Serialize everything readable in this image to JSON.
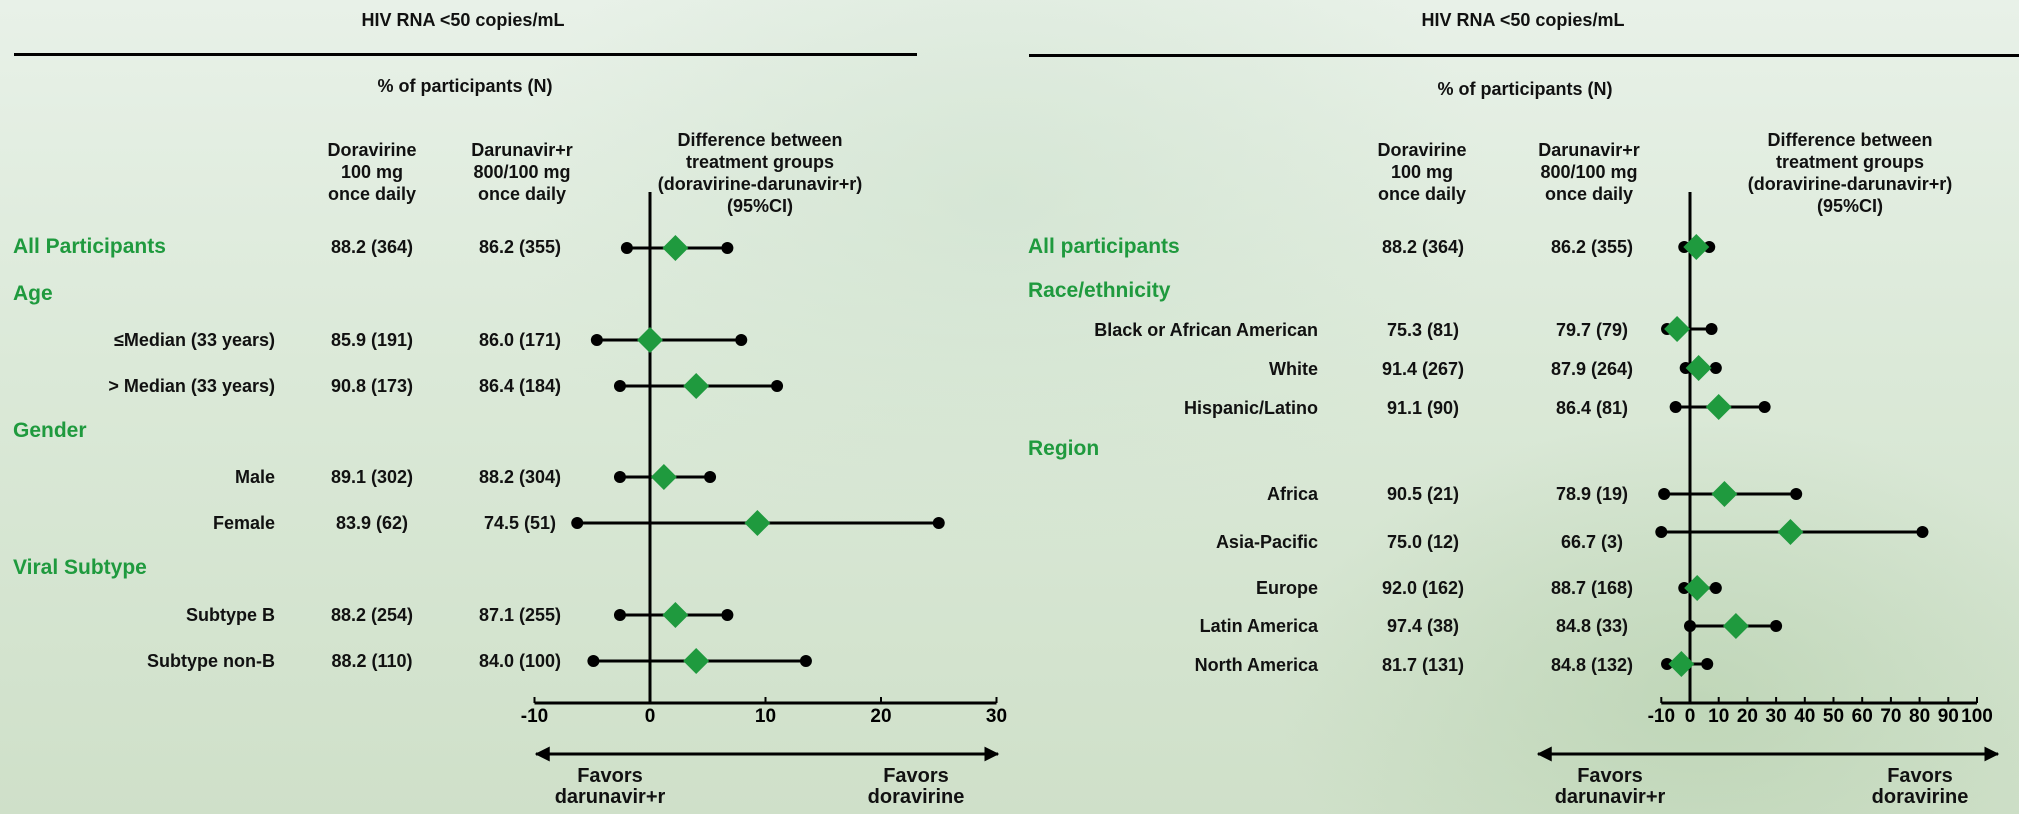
{
  "chart_data": [
    {
      "type": "forest",
      "title": "HIV RNA <50 copies/mL",
      "subtitle": "% of participants (N)",
      "columns": {
        "a": "Doravirine 100 mg once daily",
        "b": "Darunavir+r 800/100 mg once daily",
        "diff": "Difference between treatment groups (doravirine-darunavir+r) (95%CI)"
      },
      "rows": [
        {
          "kind": "heading",
          "label": "All Participants",
          "a": "88.2 (364)",
          "b": "86.2 (355)",
          "est": 2.2,
          "lo": -2.0,
          "hi": 6.7
        },
        {
          "kind": "heading",
          "label": "Age"
        },
        {
          "kind": "sub",
          "label": "≤Median (33 years)",
          "a": "85.9 (191)",
          "b": "86.0 (171)",
          "est": 0.0,
          "lo": -4.6,
          "hi": 7.9
        },
        {
          "kind": "sub",
          "label": "> Median (33 years)",
          "a": "90.8 (173)",
          "b": "86.4 (184)",
          "est": 4.0,
          "lo": -2.6,
          "hi": 11.0
        },
        {
          "kind": "heading",
          "label": "Gender"
        },
        {
          "kind": "sub",
          "label": "Male",
          "a": "89.1 (302)",
          "b": "88.2 (304)",
          "est": 1.2,
          "lo": -2.6,
          "hi": 5.2
        },
        {
          "kind": "sub",
          "label": "Female",
          "a": "83.9 (62)",
          "b": "74.5 (51)",
          "est": 9.3,
          "lo": -6.3,
          "hi": 25.0
        },
        {
          "kind": "heading",
          "label": "Viral Subtype"
        },
        {
          "kind": "sub",
          "label": "Subtype B",
          "a": "88.2 (254)",
          "b": "87.1 (255)",
          "est": 2.2,
          "lo": -2.6,
          "hi": 6.7
        },
        {
          "kind": "sub",
          "label": "Subtype non-B",
          "a": "88.2 (110)",
          "b": "84.0 (100)",
          "est": 4.0,
          "lo": -4.9,
          "hi": 13.5
        }
      ],
      "x_ticks": [
        "-10",
        "0",
        "10",
        "20",
        "30"
      ],
      "xlim": [
        -10,
        30
      ],
      "favors_left": "Favors darunavir+r",
      "favors_right": "Favors doravirine"
    },
    {
      "type": "forest",
      "title": "HIV RNA <50 copies/mL",
      "subtitle": "% of participants (N)",
      "columns": {
        "a": "Doravirine 100 mg once daily",
        "b": "Darunavir+r 800/100 mg once daily",
        "diff": "Difference between treatment groups (doravirine-darunavir+r) (95%CI)"
      },
      "rows": [
        {
          "kind": "heading",
          "label": "All participants",
          "a": "88.2 (364)",
          "b": "86.2 (355)",
          "est": 2.2,
          "lo": -2.0,
          "hi": 6.7
        },
        {
          "kind": "heading",
          "label": "Race/ethnicity"
        },
        {
          "kind": "sub",
          "label": "Black or African American",
          "a": "75.3 (81)",
          "b": "79.7 (79)",
          "est": -4.5,
          "lo": -8.0,
          "hi": 7.5
        },
        {
          "kind": "sub",
          "label": "White",
          "a": "91.4 (267)",
          "b": "87.9 (264)",
          "est": 3.0,
          "lo": -1.5,
          "hi": 9.0
        },
        {
          "kind": "sub",
          "label": "Hispanic/Latino",
          "a": "91.1 (90)",
          "b": "86.4 (81)",
          "est": 10.0,
          "lo": -5.0,
          "hi": 26.0
        },
        {
          "kind": "heading",
          "label": "Region"
        },
        {
          "kind": "sub",
          "label": "Africa",
          "a": "90.5 (21)",
          "b": "78.9 (19)",
          "est": 12.0,
          "lo": -9.0,
          "hi": 37.0
        },
        {
          "kind": "sub",
          "label": "Asia-Pacific",
          "a": "75.0 (12)",
          "b": "66.7 (3)",
          "est": 35.0,
          "lo": -10.0,
          "hi": 81.0
        },
        {
          "kind": "sub",
          "label": "Europe",
          "a": "92.0 (162)",
          "b": "88.7 (168)",
          "est": 2.5,
          "lo": -2.0,
          "hi": 9.0
        },
        {
          "kind": "sub",
          "label": "Latin America",
          "a": "97.4 (38)",
          "b": "84.8 (33)",
          "est": 16.0,
          "lo": 0.0,
          "hi": 30.0
        },
        {
          "kind": "sub",
          "label": "North America",
          "a": "81.7 (131)",
          "b": "84.8 (132)",
          "est": -3.0,
          "lo": -8.0,
          "hi": 6.0
        }
      ],
      "x_ticks": [
        "-10",
        "0",
        "10",
        "20",
        "30",
        "40",
        "50",
        "60",
        "70",
        "80",
        "90",
        "100"
      ],
      "xlim": [
        -10,
        100
      ],
      "favors_left": "Favors darunavir+r",
      "favors_right": "Favors doravirine"
    }
  ],
  "colors": {
    "heading": "#1f9a3e",
    "diamond": "#1f9a3e",
    "marks": "#000000"
  }
}
